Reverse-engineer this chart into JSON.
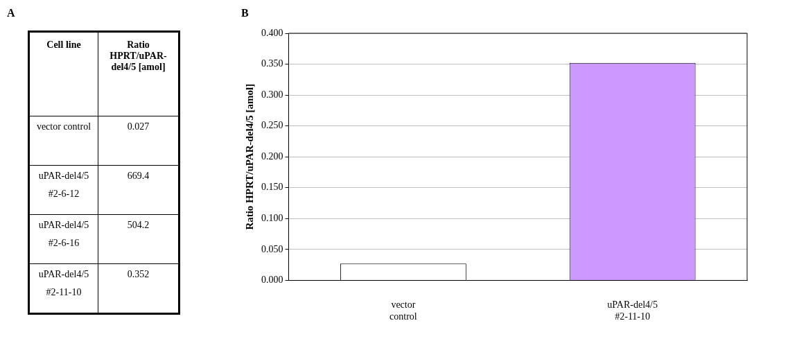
{
  "chart_data": [
    {
      "type": "other",
      "title": "A",
      "xlabel": "Cell line",
      "ylabel": "Ratio HPRT/uPAR-del4/5 [amol]",
      "categories": [
        "vector control",
        "uPAR-del4/5 #2-6-12",
        "uPAR-del4/5 #2-6-16",
        "uPAR-del4/5 #2-11-10"
      ],
      "values": [
        0.027,
        669.4,
        504.2,
        0.352
      ],
      "data_labels": true
    },
    {
      "type": "bar",
      "title": "B",
      "ylabel": "Ratio HPRT/uPAR-del4/5 [amol]",
      "categories": [
        "vector control",
        "uPAR-del4/5 #2-11-10"
      ],
      "values": [
        0.027,
        0.352
      ],
      "colors": [
        "#ffffff",
        "#cc99ff"
      ],
      "ylim": [
        0,
        0.4
      ],
      "yticks": [
        {
          "value": 0,
          "label": "0.000"
        },
        {
          "value": 0.05,
          "label": "0.050"
        },
        {
          "value": 0.1,
          "label": "0.100"
        },
        {
          "value": 0.15,
          "label": "0.150"
        },
        {
          "value": 0.2,
          "label": "0.200"
        },
        {
          "value": 0.25,
          "label": "0.250"
        },
        {
          "value": 0.3,
          "label": "0.300"
        },
        {
          "value": 0.35,
          "label": "0.350"
        },
        {
          "value": 0.4,
          "label": "0.400"
        }
      ],
      "grid": "y",
      "legend": false
    }
  ]
}
